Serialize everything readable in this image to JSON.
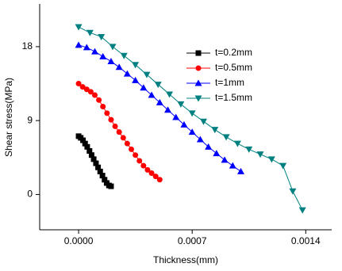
{
  "chart_data": {
    "type": "line",
    "x_label": "Thickness(mm)",
    "y_label": "Shear stress(MPa)",
    "xlim": [
      -0.00024,
      0.00156
    ],
    "ylim": [
      -4.3,
      23.2
    ],
    "xticks": [
      {
        "value": 0,
        "label": "0.0000"
      },
      {
        "value": 0.0007,
        "label": "0.0007"
      },
      {
        "value": 0.0014,
        "label": "0.0014"
      }
    ],
    "yticks": [
      0,
      9,
      18
    ],
    "legend": "upper right",
    "series": [
      {
        "name": "t=0.2mm",
        "color": "#000000",
        "marker": "square",
        "x": [
          0,
          1.3e-05,
          2.7e-05,
          4e-05,
          5.3e-05,
          6.7e-05,
          8e-05,
          9.3e-05,
          0.000107,
          0.00012,
          0.000133,
          0.000147,
          0.00016,
          0.000173,
          0.000187,
          0.0002
        ],
        "values": [
          7.1,
          6.9,
          6.6,
          6.2,
          5.8,
          5.3,
          4.8,
          4.3,
          3.8,
          3.3,
          2.8,
          2.3,
          1.8,
          1.4,
          1.1,
          1.0
        ]
      },
      {
        "name": "t=0.5mm",
        "color": "#ff0000",
        "marker": "circle",
        "x": [
          0,
          2.5e-05,
          5e-05,
          7.5e-05,
          0.0001,
          0.000125,
          0.00015,
          0.000175,
          0.0002,
          0.000225,
          0.00025,
          0.000275,
          0.0003,
          0.000325,
          0.00035,
          0.000375,
          0.0004,
          0.000425,
          0.00045,
          0.000475,
          0.0005
        ],
        "values": [
          13.5,
          13.1,
          12.8,
          12.5,
          12.1,
          11.5,
          10.7,
          9.9,
          9.1,
          8.3,
          7.6,
          6.9,
          6.2,
          5.5,
          4.8,
          4.1,
          3.5,
          3.0,
          2.6,
          2.2,
          1.8
        ]
      },
      {
        "name": "t=1mm",
        "color": "#0000ff",
        "marker": "triangle-up",
        "x": [
          0,
          5e-05,
          0.0001,
          0.00015,
          0.0002,
          0.00025,
          0.0003,
          0.00035,
          0.0004,
          0.00045,
          0.0005,
          0.00055,
          0.0006,
          0.00065,
          0.0007,
          0.00075,
          0.0008,
          0.00085,
          0.0009,
          0.00095,
          0.001
        ],
        "values": [
          18.2,
          17.9,
          17.4,
          16.8,
          16.2,
          15.5,
          14.7,
          13.9,
          13.0,
          12.1,
          11.2,
          10.3,
          9.4,
          8.5,
          7.6,
          6.7,
          5.8,
          5.0,
          4.2,
          3.5,
          2.8
        ]
      },
      {
        "name": "t=1.5mm",
        "color": "#008080",
        "marker": "triangle-down",
        "x": [
          0,
          7e-05,
          0.00014,
          0.00021,
          0.00028,
          0.00035,
          0.00042,
          0.00049,
          0.00056,
          0.00063,
          0.0007,
          0.00077,
          0.00084,
          0.00091,
          0.00098,
          0.00105,
          0.00112,
          0.00119,
          0.00126,
          0.00132,
          0.00138
        ],
        "values": [
          20.4,
          19.7,
          19.2,
          18.0,
          16.9,
          15.8,
          14.6,
          13.4,
          12.2,
          11.0,
          9.9,
          8.9,
          7.9,
          7.0,
          6.2,
          5.5,
          4.9,
          4.3,
          3.5,
          0.4,
          -1.9
        ]
      }
    ]
  }
}
